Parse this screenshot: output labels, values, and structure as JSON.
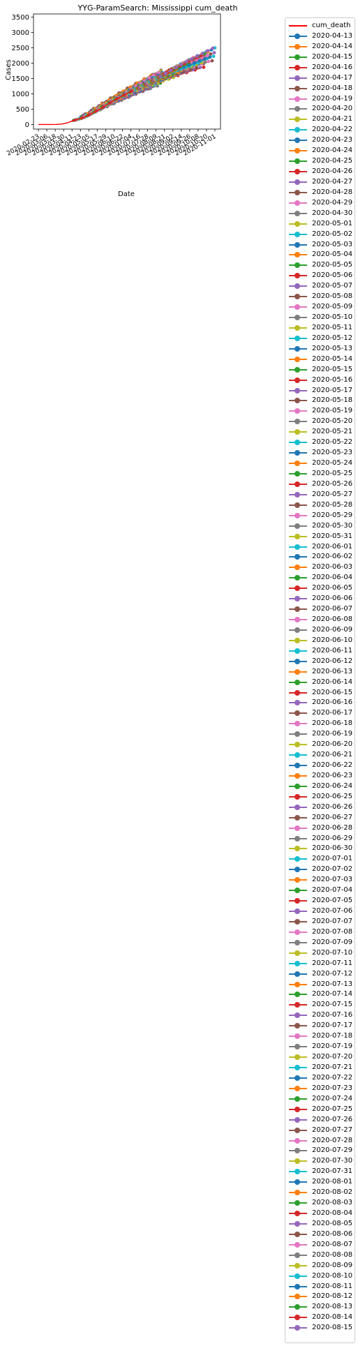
{
  "chart_data": {
    "type": "line",
    "title": "YYG-ParamSearch: Mississippi cum_death",
    "xlabel": "Date",
    "ylabel": "Cases",
    "ylim": [
      -150,
      3600
    ],
    "yticks": [
      0,
      500,
      1000,
      1500,
      2000,
      2500,
      3000,
      3500
    ],
    "xticks": [
      "2020-02-23",
      "2020-03-06",
      "2020-03-18",
      "2020-03-30",
      "2020-04-11",
      "2020-04-23",
      "2020-05-05",
      "2020-05-17",
      "2020-05-29",
      "2020-06-10",
      "2020-06-22",
      "2020-07-04",
      "2020-07-16",
      "2020-07-28",
      "2020-08-09",
      "2020-08-21",
      "2020-09-02",
      "2020-09-14",
      "2020-09-26",
      "2020-10-08",
      "2020-10-20",
      "2020-11-01"
    ],
    "xlim": [
      "2020-02-16",
      "2020-11-09"
    ],
    "grid": false,
    "legend_position": "outside-right",
    "actual": {
      "name": "cum_death",
      "color": "#ff0000",
      "points": [
        [
          "2020-02-23",
          0
        ],
        [
          "2020-03-10",
          0
        ],
        [
          "2020-03-20",
          2
        ],
        [
          "2020-03-28",
          15
        ],
        [
          "2020-04-05",
          60
        ],
        [
          "2020-04-13",
          130
        ],
        [
          "2020-04-21",
          180
        ],
        [
          "2020-04-29",
          240
        ],
        [
          "2020-05-07",
          330
        ],
        [
          "2020-05-15",
          430
        ],
        [
          "2020-05-23",
          530
        ],
        [
          "2020-05-31",
          650
        ],
        [
          "2020-06-08",
          760
        ],
        [
          "2020-06-16",
          860
        ],
        [
          "2020-06-24",
          960
        ],
        [
          "2020-07-02",
          1050
        ],
        [
          "2020-07-08",
          1120
        ]
      ]
    },
    "forecast_series_names": [
      "2020-04-13",
      "2020-04-14",
      "2020-04-15",
      "2020-04-16",
      "2020-04-17",
      "2020-04-18",
      "2020-04-19",
      "2020-04-20",
      "2020-04-21",
      "2020-04-22",
      "2020-04-23",
      "2020-04-24",
      "2020-04-25",
      "2020-04-26",
      "2020-04-27",
      "2020-04-28",
      "2020-04-29",
      "2020-04-30",
      "2020-05-01",
      "2020-05-02",
      "2020-05-03",
      "2020-05-04",
      "2020-05-05",
      "2020-05-06",
      "2020-05-07",
      "2020-05-08",
      "2020-05-09",
      "2020-05-10",
      "2020-05-11",
      "2020-05-12",
      "2020-05-13",
      "2020-05-14",
      "2020-05-15",
      "2020-05-16",
      "2020-05-17",
      "2020-05-18",
      "2020-05-19",
      "2020-05-20",
      "2020-05-21",
      "2020-05-22",
      "2020-05-23",
      "2020-05-24",
      "2020-05-25",
      "2020-05-26",
      "2020-05-27",
      "2020-05-28",
      "2020-05-29",
      "2020-05-30",
      "2020-05-31",
      "2020-06-01",
      "2020-06-02",
      "2020-06-03",
      "2020-06-04",
      "2020-06-05",
      "2020-06-06",
      "2020-06-07",
      "2020-06-08",
      "2020-06-09",
      "2020-06-10",
      "2020-06-11",
      "2020-06-12",
      "2020-06-13",
      "2020-06-14",
      "2020-06-15",
      "2020-06-16",
      "2020-06-17",
      "2020-06-18",
      "2020-06-19",
      "2020-06-20",
      "2020-06-21",
      "2020-06-22",
      "2020-06-23",
      "2020-06-24",
      "2020-06-25",
      "2020-06-26",
      "2020-06-27",
      "2020-06-28",
      "2020-06-29",
      "2020-06-30",
      "2020-07-01",
      "2020-07-02",
      "2020-07-03",
      "2020-07-04",
      "2020-07-05",
      "2020-07-06",
      "2020-07-07",
      "2020-07-08",
      "2020-07-09",
      "2020-07-10",
      "2020-07-11",
      "2020-07-12",
      "2020-07-13",
      "2020-07-14",
      "2020-07-15",
      "2020-07-16",
      "2020-07-17",
      "2020-07-18",
      "2020-07-19",
      "2020-07-20",
      "2020-07-21",
      "2020-07-22",
      "2020-07-23",
      "2020-07-24",
      "2020-07-25",
      "2020-07-26",
      "2020-07-27",
      "2020-07-28",
      "2020-07-29",
      "2020-07-30",
      "2020-07-31",
      "2020-08-01",
      "2020-08-02",
      "2020-08-03",
      "2020-08-04",
      "2020-08-05",
      "2020-08-06",
      "2020-08-07",
      "2020-08-08",
      "2020-08-09",
      "2020-08-10",
      "2020-08-11",
      "2020-08-12",
      "2020-08-13",
      "2020-08-14",
      "2020-08-15"
    ],
    "palette": [
      "#1f77b4",
      "#ff7f0e",
      "#2ca02c",
      "#d62728",
      "#9467bd",
      "#8c564b",
      "#e377c2",
      "#7f7f7f",
      "#bcbd22",
      "#17becf"
    ]
  }
}
